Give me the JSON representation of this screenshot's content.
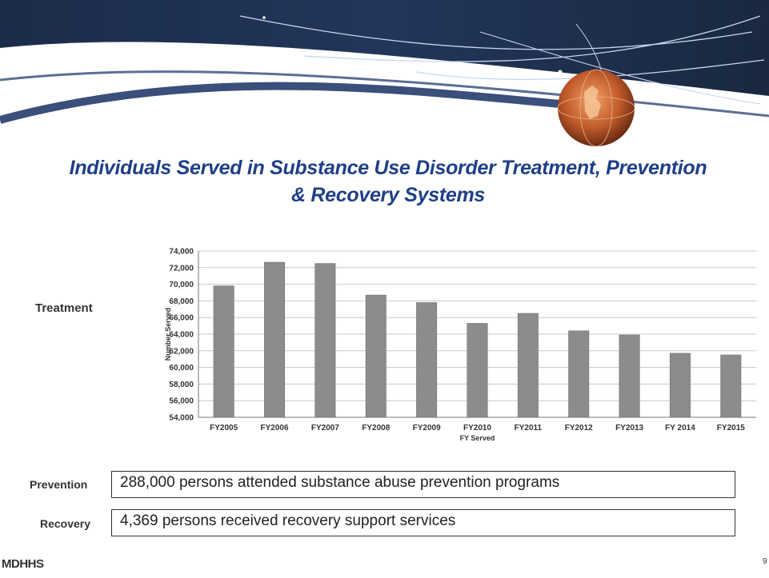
{
  "title": "Individuals Served in Substance Use Disorder Treatment, Prevention & Recovery Systems",
  "title_line1": "Individuals Served in Substance Use Disorder Treatment, Prevention",
  "title_line2": "& Recovery Systems",
  "treatment_label": "Treatment",
  "prevention": {
    "label": "Prevention",
    "text": "288,000 persons attended substance abuse prevention programs"
  },
  "recovery": {
    "label": "Recovery",
    "text": "4,369 persons received recovery support services"
  },
  "footer": {
    "logo": "MDHHS",
    "page": "9"
  },
  "colors": {
    "title": "#1f3f86",
    "bar": "#8c8c8c",
    "gridline": "#c8c8c8"
  },
  "chart_data": {
    "type": "bar",
    "categories": [
      "FY2005",
      "FY2006",
      "FY2007",
      "FY2008",
      "FY2009",
      "FY2010",
      "FY2011",
      "FY2012",
      "FY2013",
      "FY 2014",
      "FY2015"
    ],
    "values": [
      69800,
      72650,
      72500,
      68700,
      67800,
      65300,
      66500,
      64400,
      63900,
      61700,
      61500
    ],
    "xlabel": "FY Served",
    "ylabel": "Number Served",
    "ylim": [
      54000,
      74000
    ],
    "yticks": [
      "54,000",
      "56,000",
      "58,000",
      "60,000",
      "62,000",
      "64,000",
      "66,000",
      "68,000",
      "70,000",
      "72,000",
      "74,000"
    ],
    "grid": true
  }
}
